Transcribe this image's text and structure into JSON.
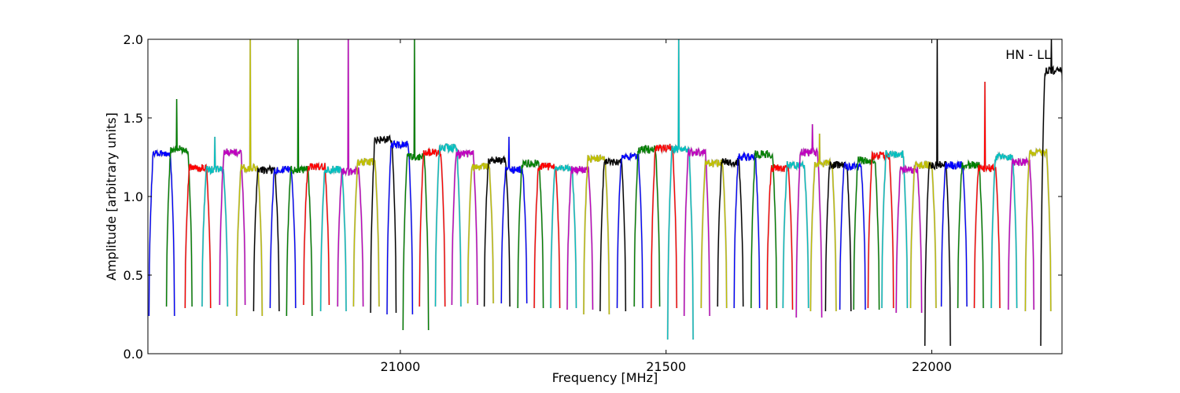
{
  "chart_data": {
    "type": "line",
    "title": "",
    "xlabel": "Frequency [MHz]",
    "ylabel": "Amplitude [arbitrary units]",
    "xlim": [
      20525,
      22245
    ],
    "ylim": [
      0.0,
      2.0
    ],
    "grid": false,
    "annotation": "HN - LL",
    "annotation_placement": "top-right",
    "x_ticks": [
      {
        "value": 21000,
        "label": "21000"
      },
      {
        "value": 21500,
        "label": "21500"
      },
      {
        "value": 22000,
        "label": "22000"
      }
    ],
    "y_ticks": [
      {
        "value": 0.0,
        "label": "0.0"
      },
      {
        "value": 0.5,
        "label": "0.5"
      },
      {
        "value": 1.0,
        "label": "1.0"
      },
      {
        "value": 1.5,
        "label": "1.5"
      },
      {
        "value": 2.0,
        "label": "2.0"
      }
    ],
    "colors": [
      "#0000ff",
      "#008000",
      "#ff0000",
      "#00bfbf",
      "#bf00bf",
      "#bfbf00",
      "#000000"
    ],
    "underlay_color": "#bfbfbf",
    "band_width_mhz": 48,
    "bands": [
      {
        "start": 20527,
        "plateau": 1.27,
        "min": 0.24
      },
      {
        "start": 20560,
        "plateau": 1.3,
        "min": 0.3,
        "spike": 1.62
      },
      {
        "start": 20595,
        "plateau": 1.18,
        "min": 0.29
      },
      {
        "start": 20627,
        "plateau": 1.17,
        "min": 0.3,
        "spike": 1.38
      },
      {
        "start": 20660,
        "plateau": 1.28,
        "min": 0.31
      },
      {
        "start": 20692,
        "plateau": 1.18,
        "min": 0.24,
        "spike": 2.0
      },
      {
        "start": 20724,
        "plateau": 1.17,
        "min": 0.27
      },
      {
        "start": 20755,
        "plateau": 1.17,
        "min": 0.29
      },
      {
        "start": 20786,
        "plateau": 1.17,
        "min": 0.24,
        "spike": 2.0
      },
      {
        "start": 20818,
        "plateau": 1.19,
        "min": 0.31
      },
      {
        "start": 20850,
        "plateau": 1.17,
        "min": 0.27
      },
      {
        "start": 20882,
        "plateau": 1.16,
        "min": 0.3,
        "spike": 2.0
      },
      {
        "start": 20912,
        "plateau": 1.22,
        "min": 0.3
      },
      {
        "start": 20944,
        "plateau": 1.36,
        "min": 0.26
      },
      {
        "start": 20975,
        "plateau": 1.33,
        "min": 0.25
      },
      {
        "start": 21005,
        "plateau": 1.25,
        "min": 0.15,
        "spike": 2.0
      },
      {
        "start": 21036,
        "plateau": 1.28,
        "min": 0.3
      },
      {
        "start": 21066,
        "plateau": 1.31,
        "min": 0.3
      },
      {
        "start": 21097,
        "plateau": 1.27,
        "min": 0.31
      },
      {
        "start": 21127,
        "plateau": 1.19,
        "min": 0.32
      },
      {
        "start": 21158,
        "plateau": 1.23,
        "min": 0.3
      },
      {
        "start": 21190,
        "plateau": 1.17,
        "min": 0.32,
        "spike": 1.38
      },
      {
        "start": 21221,
        "plateau": 1.21,
        "min": 0.29
      },
      {
        "start": 21252,
        "plateau": 1.19,
        "min": 0.29
      },
      {
        "start": 21283,
        "plateau": 1.18,
        "min": 0.29
      },
      {
        "start": 21314,
        "plateau": 1.17,
        "min": 0.28
      },
      {
        "start": 21345,
        "plateau": 1.24,
        "min": 0.25
      },
      {
        "start": 21376,
        "plateau": 1.22,
        "min": 0.27
      },
      {
        "start": 21408,
        "plateau": 1.25,
        "min": 0.29
      },
      {
        "start": 21440,
        "plateau": 1.3,
        "min": 0.3
      },
      {
        "start": 21472,
        "plateau": 1.31,
        "min": 0.29
      },
      {
        "start": 21503,
        "plateau": 1.3,
        "min": 0.09,
        "spike": 2.0
      },
      {
        "start": 21534,
        "plateau": 1.28,
        "min": 0.24
      },
      {
        "start": 21566,
        "plateau": 1.21,
        "min": 0.29
      },
      {
        "start": 21597,
        "plateau": 1.22,
        "min": 0.3
      },
      {
        "start": 21628,
        "plateau": 1.25,
        "min": 0.29
      },
      {
        "start": 21660,
        "plateau": 1.27,
        "min": 0.29
      },
      {
        "start": 21690,
        "plateau": 1.18,
        "min": 0.28
      },
      {
        "start": 21720,
        "plateau": 1.2,
        "min": 0.29
      },
      {
        "start": 21745,
        "plateau": 1.28,
        "min": 0.23,
        "spike": 1.46
      },
      {
        "start": 21772,
        "plateau": 1.21,
        "min": 0.27,
        "spike": 1.4
      },
      {
        "start": 21800,
        "plateau": 1.2,
        "min": 0.27
      },
      {
        "start": 21827,
        "plateau": 1.19,
        "min": 0.28
      },
      {
        "start": 21853,
        "plateau": 1.23,
        "min": 0.28
      },
      {
        "start": 21880,
        "plateau": 1.26,
        "min": 0.29
      },
      {
        "start": 21906,
        "plateau": 1.27,
        "min": 0.29
      },
      {
        "start": 21933,
        "plateau": 1.17,
        "min": 0.26
      },
      {
        "start": 21960,
        "plateau": 1.2,
        "min": 0.29
      },
      {
        "start": 21987,
        "plateau": 1.2,
        "min": 0.05,
        "spike": 2.0
      },
      {
        "start": 22018,
        "plateau": 1.2,
        "min": 0.3
      },
      {
        "start": 22049,
        "plateau": 1.2,
        "min": 0.29
      },
      {
        "start": 22080,
        "plateau": 1.18,
        "min": 0.29,
        "spike": 1.73
      },
      {
        "start": 22112,
        "plateau": 1.25,
        "min": 0.29
      },
      {
        "start": 22144,
        "plateau": 1.22,
        "min": 0.28
      },
      {
        "start": 22176,
        "plateau": 1.28,
        "min": 0.27
      },
      {
        "start": 22205,
        "plateau": 1.8,
        "min": 0.05,
        "spike": 2.0
      }
    ]
  }
}
